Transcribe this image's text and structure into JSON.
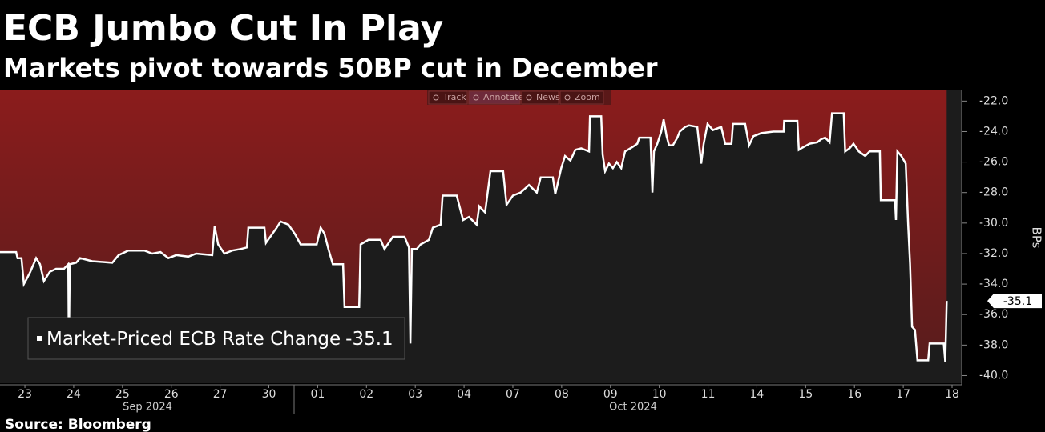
{
  "chart_data": {
    "type": "area-line",
    "title": "ECB Jumbo Cut In Play",
    "subtitle": "Markets pivot towards 50BP cut in December",
    "source": "Source: Bloomberg",
    "y_label": "BPs",
    "toolbar": [
      "Track",
      "Annotate",
      "News",
      "Zoom"
    ],
    "months": [
      "Sep 2024",
      "Oct 2024"
    ],
    "xlim": [
      -0.51,
      19.0
    ],
    "ylim": [
      -40.5,
      -21.3
    ],
    "xticks": [
      {
        "value": 0,
        "label": "23"
      },
      {
        "value": 1,
        "label": "24"
      },
      {
        "value": 2,
        "label": "25"
      },
      {
        "value": 3,
        "label": "26"
      },
      {
        "value": 4,
        "label": "27"
      },
      {
        "value": 5,
        "label": "30"
      },
      {
        "value": 6,
        "label": "01"
      },
      {
        "value": 7,
        "label": "02"
      },
      {
        "value": 8,
        "label": "03"
      },
      {
        "value": 9,
        "label": "04"
      },
      {
        "value": 10,
        "label": "07"
      },
      {
        "value": 11,
        "label": "08"
      },
      {
        "value": 12,
        "label": "09"
      },
      {
        "value": 13,
        "label": "10"
      },
      {
        "value": 14,
        "label": "11"
      },
      {
        "value": 15,
        "label": "14"
      },
      {
        "value": 16,
        "label": "15"
      },
      {
        "value": 17,
        "label": "16"
      },
      {
        "value": 18,
        "label": "17"
      },
      {
        "value": 19,
        "label": "18"
      }
    ],
    "yticks": [
      {
        "value": -22,
        "label": "-22.0"
      },
      {
        "value": -24,
        "label": "-24.0"
      },
      {
        "value": -26,
        "label": "-26.0"
      },
      {
        "value": -28,
        "label": "-28.0"
      },
      {
        "value": -30,
        "label": "-30.0"
      },
      {
        "value": -32,
        "label": "-32.0"
      },
      {
        "value": -34,
        "label": "-34.0"
      },
      {
        "value": -36,
        "label": "-36.0"
      },
      {
        "value": -38,
        "label": "-38.0"
      },
      {
        "value": -40,
        "label": "-40.0"
      }
    ],
    "area_color": "#8b1c1c",
    "x": [
      -0.51,
      -0.18,
      -0.15,
      -0.07,
      -0.02,
      0.03,
      0.11,
      0.23,
      0.31,
      0.39,
      0.51,
      0.64,
      0.8,
      0.89,
      0.9,
      0.92,
      1.05,
      1.13,
      1.38,
      1.79,
      1.92,
      2.12,
      2.45,
      2.61,
      2.78,
      2.94,
      3.1,
      3.35,
      3.51,
      3.84,
      3.89,
      3.96,
      4.09,
      4.25,
      4.42,
      4.55,
      4.58,
      4.91,
      4.94,
      5.16,
      5.24,
      5.4,
      5.53,
      5.65,
      5.98,
      6.06,
      6.14,
      6.22,
      6.31,
      6.52,
      6.55,
      6.85,
      6.88,
      7.04,
      7.29,
      7.37,
      7.54,
      7.78,
      7.87,
      7.9,
      7.93,
      8.03,
      8.11,
      8.28,
      8.36,
      8.52,
      8.56,
      8.85,
      8.98,
      9.1,
      9.26,
      9.31,
      9.43,
      9.54,
      9.8,
      9.87,
      10.0,
      10.16,
      10.33,
      10.49,
      10.57,
      10.82,
      10.87,
      10.99,
      11.07,
      11.18,
      11.28,
      11.4,
      11.56,
      11.58,
      11.81,
      11.84,
      11.89,
      11.97,
      12.05,
      12.13,
      12.22,
      12.3,
      12.46,
      12.55,
      12.59,
      12.82,
      12.86,
      12.89,
      12.96,
      13.04,
      13.09,
      13.15,
      13.2,
      13.28,
      13.37,
      13.42,
      13.53,
      13.61,
      13.78,
      13.86,
      13.91,
      13.99,
      14.1,
      14.27,
      14.35,
      14.48,
      14.51,
      14.76,
      14.84,
      14.93,
      15.09,
      15.34,
      15.55,
      15.56,
      15.83,
      15.86,
      15.91,
      16.08,
      16.24,
      16.32,
      16.4,
      16.49,
      16.54,
      16.78,
      16.81,
      16.9,
      16.98,
      17.09,
      17.22,
      17.31,
      17.52,
      17.54,
      17.83,
      17.85,
      17.88,
      17.96,
      18.05,
      18.1,
      18.14,
      18.18,
      18.24,
      18.29,
      18.51,
      18.54,
      18.83,
      18.86,
      18.89
    ],
    "series": [
      {
        "name": "Market-Priced ECB Rate Change",
        "color": "#ffffff",
        "values": [
          -31.9,
          -31.9,
          -32.3,
          -32.3,
          -34.0,
          -33.7,
          -33.2,
          -32.3,
          -32.7,
          -33.8,
          -33.2,
          -33.0,
          -33.0,
          -32.7,
          -38.3,
          -32.7,
          -32.6,
          -32.3,
          -32.5,
          -32.6,
          -32.1,
          -31.8,
          -31.8,
          -32.0,
          -31.9,
          -32.3,
          -32.1,
          -32.2,
          -32.0,
          -32.1,
          -30.2,
          -31.4,
          -32.0,
          -31.8,
          -31.7,
          -31.6,
          -30.3,
          -30.3,
          -31.3,
          -30.3,
          -29.9,
          -30.1,
          -30.7,
          -31.4,
          -31.4,
          -30.3,
          -30.7,
          -31.7,
          -32.7,
          -32.7,
          -35.5,
          -35.5,
          -31.4,
          -31.1,
          -31.1,
          -31.7,
          -30.9,
          -30.9,
          -31.6,
          -37.9,
          -31.7,
          -31.7,
          -31.4,
          -31.1,
          -30.3,
          -30.1,
          -28.2,
          -28.2,
          -29.8,
          -29.6,
          -30.1,
          -28.9,
          -29.3,
          -26.6,
          -26.6,
          -28.8,
          -28.2,
          -28.0,
          -27.5,
          -28.0,
          -27.0,
          -27.0,
          -28.1,
          -26.4,
          -25.6,
          -25.9,
          -25.2,
          -25.1,
          -25.3,
          -23.0,
          -23.0,
          -25.5,
          -26.6,
          -26.1,
          -26.4,
          -26.0,
          -26.4,
          -25.3,
          -25.0,
          -24.8,
          -24.4,
          -24.4,
          -28.0,
          -25.3,
          -24.8,
          -24.0,
          -23.2,
          -24.3,
          -24.9,
          -24.9,
          -24.4,
          -24.0,
          -23.7,
          -23.6,
          -23.7,
          -26.1,
          -24.8,
          -23.5,
          -23.9,
          -23.7,
          -24.8,
          -24.8,
          -23.5,
          -23.5,
          -24.9,
          -24.3,
          -24.1,
          -24.0,
          -24.0,
          -23.3,
          -23.3,
          -25.2,
          -25.1,
          -24.8,
          -24.7,
          -24.5,
          -24.4,
          -24.7,
          -22.8,
          -22.8,
          -25.3,
          -25.1,
          -24.8,
          -25.3,
          -25.6,
          -25.3,
          -25.3,
          -28.5,
          -28.5,
          -29.8,
          -25.3,
          -25.6,
          -26.1,
          -30.1,
          -32.7,
          -36.8,
          -37.0,
          -39.0,
          -39.0,
          -37.9,
          -37.9,
          -39.1,
          -35.1
        ]
      }
    ]
  }
}
